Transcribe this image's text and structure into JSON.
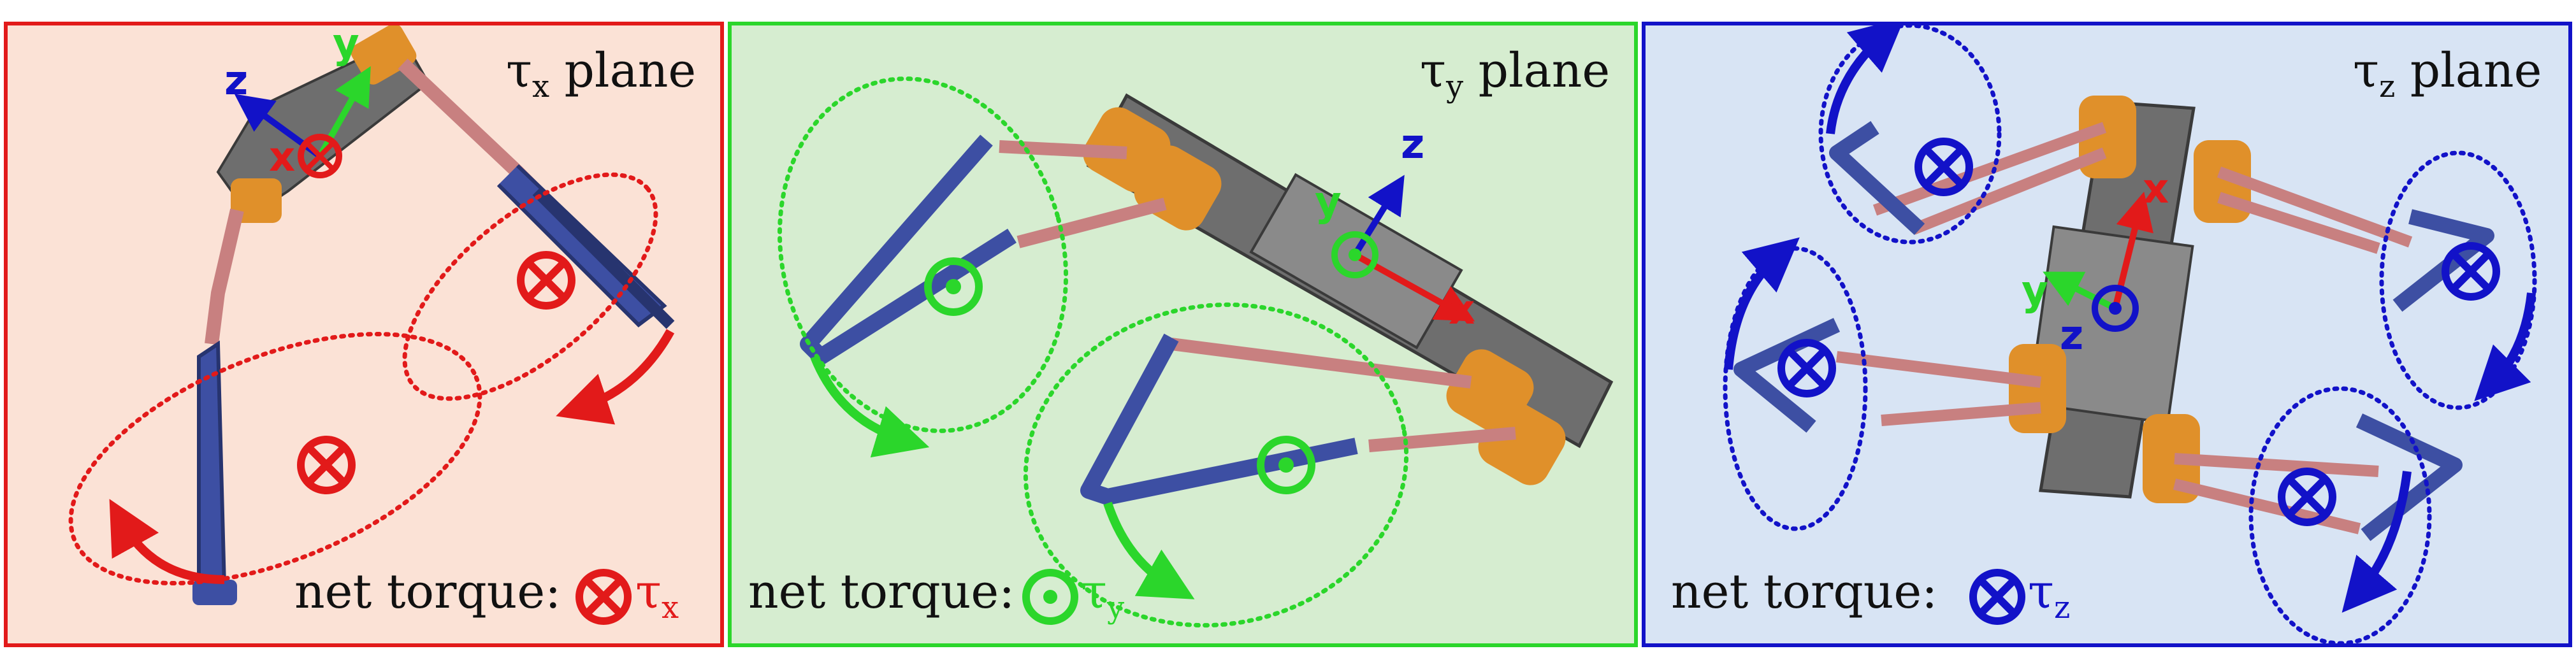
{
  "colors": {
    "x_panel": "#e21a1a",
    "y_panel": "#2bd62b",
    "z_panel": "#1212c8",
    "x_bg": "#fbe2d6",
    "y_bg": "#d6edd0",
    "z_bg": "#d8e4f4",
    "leg_blue": "#3d4fa3",
    "motor_orange": "#e0902a",
    "body_gray": "#6e6e6e",
    "link_pink": "#c88080"
  },
  "panels": {
    "x": {
      "plane": "τx plane",
      "plane_sym": "τ",
      "plane_sub": "x",
      "plane_word": " plane",
      "net": "net torque:",
      "tau": "τ",
      "tau_sub": "x",
      "axes": {
        "x": "x",
        "y": "y",
        "z": "z"
      },
      "torque_symbol": "into-page"
    },
    "y": {
      "plane_sym": "τ",
      "plane_sub": "y",
      "plane_word": " plane",
      "net": "net torque:",
      "tau": "τ",
      "tau_sub": "y",
      "axes": {
        "x": "x",
        "y": "y",
        "z": "z"
      },
      "torque_symbol": "out-of-page"
    },
    "z": {
      "plane_sym": "τ",
      "plane_sub": "z",
      "plane_word": " plane",
      "net": "net torque:",
      "tau": "τ",
      "tau_sub": "z",
      "axes": {
        "x": "x",
        "y": "y",
        "z": "z"
      },
      "torque_symbol": "into-page"
    }
  }
}
